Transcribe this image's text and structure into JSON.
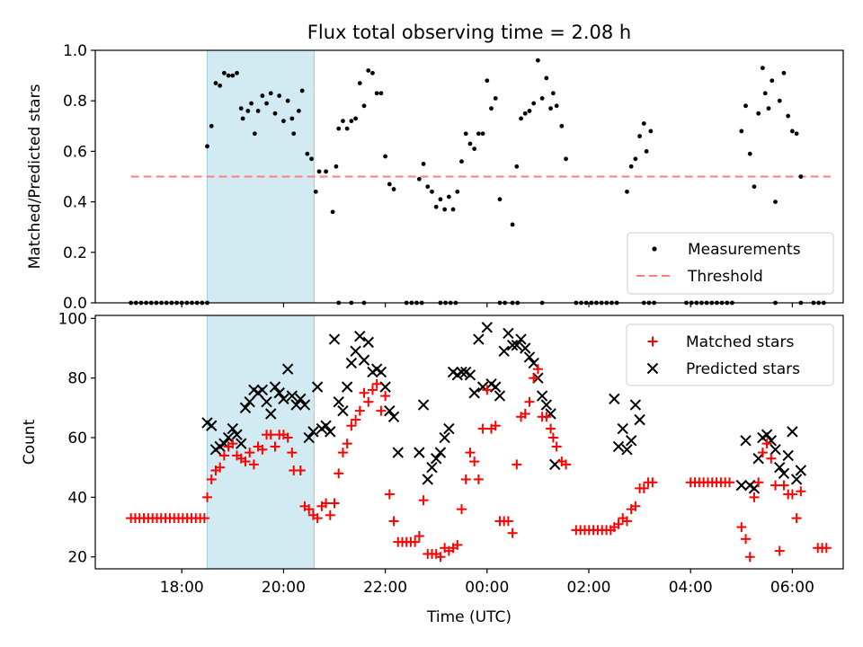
{
  "figure": {
    "title": "Flux total observing time = 2.08 h",
    "xlabel": "Time (UTC)",
    "x_ticks": [
      "18:00",
      "20:00",
      "22:00",
      "00:00",
      "02:00",
      "04:00",
      "06:00"
    ],
    "shaded_span": [
      "18:30",
      "20:36"
    ]
  },
  "chart_data": [
    {
      "type": "scatter",
      "panel": "top",
      "ylabel": "Matched/Predicted stars",
      "ylim": [
        0,
        1.0
      ],
      "y_ticks": [
        "0.0",
        "0.2",
        "0.4",
        "0.6",
        "0.8",
        "1.0"
      ],
      "threshold": 0.5,
      "threshold_x_range": [
        "17:00",
        "06:45"
      ],
      "legend": {
        "placement": "lower-right",
        "items": [
          "Measurements",
          "Threshold"
        ]
      },
      "colors": {
        "measurements": "#000000",
        "threshold": "#ff7f7f",
        "span": "#add8e6"
      },
      "zero_groups": [
        [
          "17:00",
          "18:30",
          0.1
        ],
        [
          "21:05",
          "21:35",
          0.25
        ],
        [
          "22:25",
          "22:45",
          0.1
        ],
        [
          "23:05",
          "23:25",
          0.1
        ],
        [
          "00:15",
          "00:25",
          0.1
        ],
        [
          "00:30",
          "00:40",
          0.1
        ],
        [
          "00:65",
          "00:70",
          0.1
        ],
        [
          "01:45",
          "02:35",
          0.1
        ],
        [
          "03:05",
          "03:20",
          0.1
        ],
        [
          "03:55",
          "04:50",
          0.1
        ],
        [
          "05:40",
          "05:45",
          0.1
        ],
        [
          "06:10",
          "06:15",
          0.1
        ],
        [
          "06:25",
          "06:40",
          0.1
        ]
      ],
      "points": [
        [
          "18:30",
          0.62
        ],
        [
          "18:35",
          0.7
        ],
        [
          "18:40",
          0.87
        ],
        [
          "18:45",
          0.86
        ],
        [
          "18:50",
          0.91
        ],
        [
          "18:55",
          0.9
        ],
        [
          "19:00",
          0.9
        ],
        [
          "19:05",
          0.91
        ],
        [
          "19:10",
          0.77
        ],
        [
          "19:12",
          0.73
        ],
        [
          "19:18",
          0.76
        ],
        [
          "19:22",
          0.79
        ],
        [
          "19:26",
          0.67
        ],
        [
          "19:30",
          0.76
        ],
        [
          "19:35",
          0.82
        ],
        [
          "19:40",
          0.79
        ],
        [
          "19:45",
          0.83
        ],
        [
          "19:50",
          0.75
        ],
        [
          "19:55",
          0.82
        ],
        [
          "20:00",
          0.72
        ],
        [
          "20:05",
          0.8
        ],
        [
          "20:10",
          0.73
        ],
        [
          "20:12",
          0.67
        ],
        [
          "20:18",
          0.76
        ],
        [
          "20:22",
          0.84
        ],
        [
          "20:28",
          0.59
        ],
        [
          "20:33",
          0.57
        ],
        [
          "20:38",
          0.44
        ],
        [
          "20:42",
          0.52
        ],
        [
          "20:50",
          0.52
        ],
        [
          "20:58",
          0.36
        ],
        [
          "21:02",
          0.54
        ],
        [
          "21:05",
          0.69
        ],
        [
          "21:10",
          0.72
        ],
        [
          "21:15",
          0.69
        ],
        [
          "21:20",
          0.72
        ],
        [
          "21:25",
          0.73
        ],
        [
          "21:30",
          0.87
        ],
        [
          "21:35",
          0.78
        ],
        [
          "21:40",
          0.92
        ],
        [
          "21:45",
          0.91
        ],
        [
          "21:50",
          0.83
        ],
        [
          "21:55",
          0.83
        ],
        [
          "22:00",
          0.58
        ],
        [
          "22:05",
          0.47
        ],
        [
          "22:10",
          0.45
        ],
        [
          "22:40",
          0.49
        ],
        [
          "22:45",
          0.55
        ],
        [
          "22:50",
          0.46
        ],
        [
          "22:55",
          0.44
        ],
        [
          "23:00",
          0.38
        ],
        [
          "23:05",
          0.41
        ],
        [
          "23:10",
          0.37
        ],
        [
          "23:15",
          0.42
        ],
        [
          "23:20",
          0.37
        ],
        [
          "23:25",
          0.44
        ],
        [
          "23:30",
          0.56
        ],
        [
          "23:35",
          0.67
        ],
        [
          "23:40",
          0.63
        ],
        [
          "23:45",
          0.61
        ],
        [
          "23:50",
          0.67
        ],
        [
          "23:55",
          0.67
        ],
        [
          "24:00",
          0.88
        ],
        [
          "24:05",
          0.77
        ],
        [
          "24:10",
          0.81
        ],
        [
          "24:15",
          0.41
        ],
        [
          "24:30",
          0.31
        ],
        [
          "24:35",
          0.54
        ],
        [
          "24:40",
          0.73
        ],
        [
          "24:45",
          0.75
        ],
        [
          "24:50",
          0.76
        ],
        [
          "24:55",
          0.79
        ],
        [
          "25:00",
          0.96
        ],
        [
          "25:05",
          0.81
        ],
        [
          "25:10",
          0.89
        ],
        [
          "25:15",
          0.77
        ],
        [
          "25:18",
          0.83
        ],
        [
          "25:22",
          0.78
        ],
        [
          "25:28",
          0.7
        ],
        [
          "25:33",
          0.57
        ],
        [
          "26:45",
          0.44
        ],
        [
          "26:50",
          0.54
        ],
        [
          "26:55",
          0.57
        ],
        [
          "27:00",
          0.66
        ],
        [
          "27:05",
          0.71
        ],
        [
          "27:08",
          0.6
        ],
        [
          "27:13",
          0.68
        ],
        [
          "29:00",
          0.68
        ],
        [
          "29:05",
          0.78
        ],
        [
          "29:10",
          0.59
        ],
        [
          "29:15",
          0.46
        ],
        [
          "29:20",
          0.75
        ],
        [
          "29:25",
          0.93
        ],
        [
          "29:28",
          0.83
        ],
        [
          "29:32",
          0.77
        ],
        [
          "29:36",
          0.88
        ],
        [
          "29:40",
          0.4
        ],
        [
          "29:45",
          0.8
        ],
        [
          "29:50",
          0.91
        ],
        [
          "29:55",
          0.74
        ],
        [
          "30:00",
          0.68
        ],
        [
          "30:05",
          0.67
        ],
        [
          "30:10",
          0.5
        ]
      ]
    },
    {
      "type": "scatter",
      "panel": "bottom",
      "ylabel": "Count",
      "ylim": [
        16,
        101
      ],
      "y_ticks": [
        "20",
        "40",
        "60",
        "80",
        "100"
      ],
      "legend": {
        "placement": "top-right",
        "items": [
          "Matched stars",
          "Predicted stars"
        ]
      },
      "colors": {
        "matched": "#ff0000",
        "predicted": "#000000"
      },
      "matched_flat_groups": [
        [
          "17:00",
          "18:30",
          33
        ],
        [
          "01:45",
          "02:30",
          29
        ],
        [
          "03:10",
          "03:20",
          45
        ],
        [
          "04:00",
          "04:50",
          45
        ],
        [
          "06:30",
          "06:45",
          23
        ]
      ],
      "matched": [
        [
          "18:30",
          40
        ],
        [
          "18:35",
          46
        ],
        [
          "18:40",
          49
        ],
        [
          "18:45",
          50
        ],
        [
          "18:50",
          54
        ],
        [
          "18:55",
          57
        ],
        [
          "19:00",
          58
        ],
        [
          "19:05",
          54
        ],
        [
          "19:10",
          53
        ],
        [
          "19:15",
          52
        ],
        [
          "19:20",
          55
        ],
        [
          "19:25",
          51
        ],
        [
          "19:30",
          57
        ],
        [
          "19:35",
          56
        ],
        [
          "19:40",
          61
        ],
        [
          "19:45",
          61
        ],
        [
          "19:50",
          57
        ],
        [
          "19:55",
          61
        ],
        [
          "20:00",
          61
        ],
        [
          "20:05",
          60
        ],
        [
          "20:10",
          55
        ],
        [
          "20:12",
          49
        ],
        [
          "20:20",
          49
        ],
        [
          "20:25",
          37
        ],
        [
          "20:30",
          36
        ],
        [
          "20:35",
          34
        ],
        [
          "20:40",
          33
        ],
        [
          "20:45",
          37
        ],
        [
          "20:50",
          38
        ],
        [
          "20:55",
          34
        ],
        [
          "21:00",
          38
        ],
        [
          "21:05",
          48
        ],
        [
          "21:10",
          55
        ],
        [
          "21:15",
          58
        ],
        [
          "21:20",
          64
        ],
        [
          "21:25",
          66
        ],
        [
          "21:30",
          69
        ],
        [
          "21:35",
          75
        ],
        [
          "21:40",
          72
        ],
        [
          "21:45",
          76
        ],
        [
          "21:50",
          78
        ],
        [
          "21:55",
          69
        ],
        [
          "22:00",
          74
        ],
        [
          "22:05",
          41
        ],
        [
          "22:10",
          32
        ],
        [
          "22:15",
          25
        ],
        [
          "22:20",
          25
        ],
        [
          "22:25",
          25
        ],
        [
          "22:30",
          25
        ],
        [
          "22:35",
          25
        ],
        [
          "22:40",
          27
        ],
        [
          "22:45",
          39
        ],
        [
          "22:50",
          21
        ],
        [
          "22:55",
          21
        ],
        [
          "23:00",
          21
        ],
        [
          "23:05",
          20
        ],
        [
          "23:10",
          23
        ],
        [
          "23:15",
          22
        ],
        [
          "23:20",
          23
        ],
        [
          "23:25",
          24
        ],
        [
          "23:30",
          36
        ],
        [
          "23:35",
          46
        ],
        [
          "23:40",
          55
        ],
        [
          "23:45",
          52
        ],
        [
          "23:50",
          46
        ],
        [
          "23:55",
          63
        ],
        [
          "24:00",
          76
        ],
        [
          "24:05",
          63
        ],
        [
          "24:10",
          64
        ],
        [
          "24:15",
          32
        ],
        [
          "24:20",
          32
        ],
        [
          "24:25",
          32
        ],
        [
          "24:30",
          28
        ],
        [
          "24:35",
          51
        ],
        [
          "24:40",
          67
        ],
        [
          "24:45",
          68
        ],
        [
          "24:50",
          72
        ],
        [
          "24:55",
          80
        ],
        [
          "25:00",
          83
        ],
        [
          "25:05",
          67
        ],
        [
          "25:10",
          67
        ],
        [
          "25:15",
          63
        ],
        [
          "25:18",
          60
        ],
        [
          "25:22",
          57
        ],
        [
          "25:28",
          52
        ],
        [
          "25:33",
          51
        ],
        [
          "26:30",
          30
        ],
        [
          "26:35",
          31
        ],
        [
          "26:40",
          33
        ],
        [
          "26:45",
          32
        ],
        [
          "26:50",
          36
        ],
        [
          "26:55",
          37
        ],
        [
          "27:00",
          43
        ],
        [
          "27:05",
          43
        ],
        [
          "29:00",
          30
        ],
        [
          "29:05",
          26
        ],
        [
          "29:10",
          20
        ],
        [
          "29:15",
          40
        ],
        [
          "29:20",
          45
        ],
        [
          "29:25",
          55
        ],
        [
          "29:30",
          58
        ],
        [
          "29:35",
          53
        ],
        [
          "29:40",
          44
        ],
        [
          "29:45",
          22
        ],
        [
          "29:50",
          44
        ],
        [
          "29:55",
          41
        ],
        [
          "30:00",
          41
        ],
        [
          "30:05",
          33
        ],
        [
          "30:10",
          42
        ]
      ],
      "predicted": [
        [
          "18:30",
          65
        ],
        [
          "18:35",
          64
        ],
        [
          "18:40",
          56
        ],
        [
          "18:45",
          57
        ],
        [
          "18:50",
          58
        ],
        [
          "18:55",
          60
        ],
        [
          "19:00",
          63
        ],
        [
          "19:05",
          61
        ],
        [
          "19:10",
          58
        ],
        [
          "19:15",
          70
        ],
        [
          "19:20",
          72
        ],
        [
          "19:25",
          76
        ],
        [
          "19:30",
          75
        ],
        [
          "19:35",
          76
        ],
        [
          "19:40",
          72
        ],
        [
          "19:45",
          68
        ],
        [
          "19:50",
          77
        ],
        [
          "19:55",
          75
        ],
        [
          "20:00",
          73
        ],
        [
          "20:05",
          83
        ],
        [
          "20:10",
          74
        ],
        [
          "20:15",
          71
        ],
        [
          "20:20",
          73
        ],
        [
          "20:25",
          71
        ],
        [
          "20:30",
          60
        ],
        [
          "20:35",
          62
        ],
        [
          "20:40",
          77
        ],
        [
          "20:45",
          63
        ],
        [
          "20:50",
          64
        ],
        [
          "20:55",
          62
        ],
        [
          "21:00",
          93
        ],
        [
          "21:05",
          72
        ],
        [
          "21:10",
          69
        ],
        [
          "21:15",
          77
        ],
        [
          "21:20",
          85
        ],
        [
          "21:25",
          89
        ],
        [
          "21:30",
          94
        ],
        [
          "21:35",
          86
        ],
        [
          "21:40",
          92
        ],
        [
          "21:45",
          82
        ],
        [
          "21:50",
          83
        ],
        [
          "21:55",
          82
        ],
        [
          "22:00",
          77
        ],
        [
          "22:05",
          69
        ],
        [
          "22:10",
          67
        ],
        [
          "22:15",
          55
        ],
        [
          "22:40",
          55
        ],
        [
          "22:45",
          71
        ],
        [
          "22:50",
          46
        ],
        [
          "22:55",
          50
        ],
        [
          "23:00",
          53
        ],
        [
          "23:05",
          55
        ],
        [
          "23:10",
          60
        ],
        [
          "23:15",
          63
        ],
        [
          "23:20",
          82
        ],
        [
          "23:25",
          81
        ],
        [
          "23:30",
          82
        ],
        [
          "23:35",
          82
        ],
        [
          "23:40",
          81
        ],
        [
          "23:45",
          75
        ],
        [
          "23:50",
          93
        ],
        [
          "23:55",
          77
        ],
        [
          "24:00",
          97
        ],
        [
          "24:05",
          78
        ],
        [
          "24:10",
          77
        ],
        [
          "24:15",
          74
        ],
        [
          "24:20",
          89
        ],
        [
          "24:25",
          95
        ],
        [
          "24:30",
          91
        ],
        [
          "24:35",
          91
        ],
        [
          "24:40",
          93
        ],
        [
          "24:45",
          90
        ],
        [
          "24:50",
          87
        ],
        [
          "24:55",
          85
        ],
        [
          "25:00",
          80
        ],
        [
          "25:05",
          74
        ],
        [
          "25:10",
          71
        ],
        [
          "25:15",
          68
        ],
        [
          "25:20",
          51
        ],
        [
          "26:30",
          73
        ],
        [
          "26:35",
          57
        ],
        [
          "26:40",
          63
        ],
        [
          "26:45",
          56
        ],
        [
          "26:50",
          59
        ],
        [
          "26:55",
          71
        ],
        [
          "27:00",
          66
        ],
        [
          "29:00",
          44
        ],
        [
          "29:05",
          59
        ],
        [
          "29:10",
          44
        ],
        [
          "29:15",
          43
        ],
        [
          "29:20",
          53
        ],
        [
          "29:25",
          60
        ],
        [
          "29:30",
          61
        ],
        [
          "29:35",
          59
        ],
        [
          "29:40",
          56
        ],
        [
          "29:45",
          50
        ],
        [
          "29:50",
          48
        ],
        [
          "29:55",
          54
        ],
        [
          "30:00",
          62
        ],
        [
          "30:05",
          46
        ],
        [
          "30:10",
          49
        ]
      ]
    }
  ]
}
